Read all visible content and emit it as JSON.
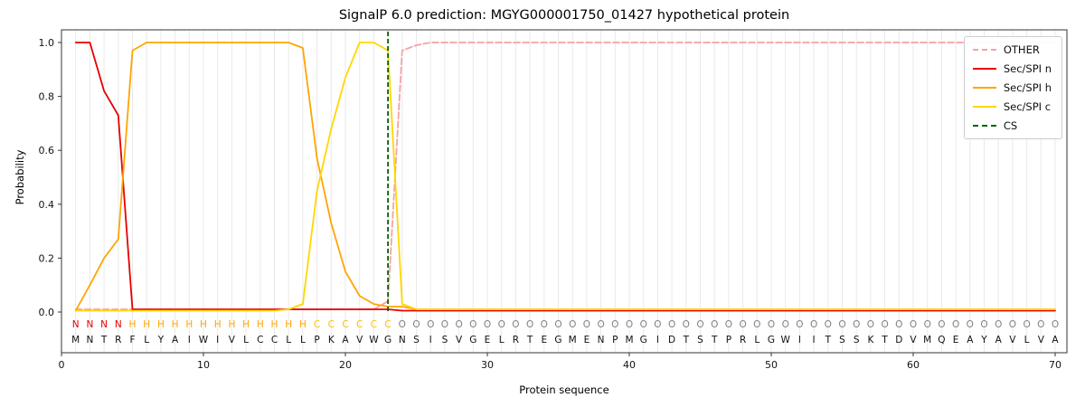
{
  "chart_data": {
    "type": "line",
    "title": "SignalP 6.0 prediction: MGYG000001750_01427 hypothetical protein",
    "xlabel": "Protein sequence",
    "ylabel": "Probability",
    "xlim": [
      0,
      71
    ],
    "ylim": [
      0,
      1.05
    ],
    "xticks": [
      0,
      10,
      20,
      30,
      40,
      50,
      60,
      70
    ],
    "yticks": [
      0.0,
      0.2,
      0.4,
      0.6,
      0.8,
      1.0
    ],
    "grid": "vertical gridline at every residue position",
    "legend_position": "upper right",
    "sequence": "MNTRFLYAIWIVLCCLLPKAVWGNSISVGELRTEGMENPMGIDTSTPRLGWIITSSKTDVMQEAYAVLVA",
    "regions": "NNNNHHHHHHHHHHHHHCCCCCCOOOOOOOOOOOOOOOOOOOOOOOOOOOOOOOOOOOOOOOOOOOOOOO",
    "region_colors": {
      "N": "#e60000",
      "H": "#ffa500",
      "C": "#f5c400",
      "O": "#808080"
    },
    "cs": {
      "label": "CS",
      "position": 23,
      "color": "#006400"
    },
    "series": [
      {
        "name": "OTHER",
        "color": "#f5a3a3",
        "dash": true,
        "values": [
          0.01,
          0.01,
          0.01,
          0.01,
          0.01,
          0.01,
          0.01,
          0.01,
          0.01,
          0.01,
          0.01,
          0.01,
          0.01,
          0.01,
          0.01,
          0.01,
          0.01,
          0.01,
          0.01,
          0.01,
          0.01,
          0.01,
          0.04,
          0.97,
          0.99,
          1.0,
          1.0,
          1.0,
          1.0,
          1.0,
          1.0,
          1.0,
          1.0,
          1.0,
          1.0,
          1.0,
          1.0,
          1.0,
          1.0,
          1.0,
          1.0,
          1.0,
          1.0,
          1.0,
          1.0,
          1.0,
          1.0,
          1.0,
          1.0,
          1.0,
          1.0,
          1.0,
          1.0,
          1.0,
          1.0,
          1.0,
          1.0,
          1.0,
          1.0,
          1.0,
          1.0,
          1.0,
          1.0,
          1.0,
          1.0,
          1.0,
          1.0,
          1.0,
          1.0,
          1.0
        ]
      },
      {
        "name": "Sec/SPI n",
        "color": "#e60000",
        "dash": false,
        "values": [
          1.0,
          1.0,
          0.82,
          0.73,
          0.01,
          0.01,
          0.01,
          0.01,
          0.01,
          0.01,
          0.01,
          0.01,
          0.01,
          0.01,
          0.01,
          0.01,
          0.01,
          0.01,
          0.01,
          0.01,
          0.01,
          0.01,
          0.01,
          0.005,
          0.005,
          0.005,
          0.005,
          0.005,
          0.005,
          0.005,
          0.005,
          0.005,
          0.005,
          0.005,
          0.005,
          0.005,
          0.005,
          0.005,
          0.005,
          0.005,
          0.005,
          0.005,
          0.005,
          0.005,
          0.005,
          0.005,
          0.005,
          0.005,
          0.005,
          0.005,
          0.005,
          0.005,
          0.005,
          0.005,
          0.005,
          0.005,
          0.005,
          0.005,
          0.005,
          0.005,
          0.005,
          0.005,
          0.005,
          0.005,
          0.005,
          0.005,
          0.005,
          0.005,
          0.005,
          0.005
        ]
      },
      {
        "name": "Sec/SPI h",
        "color": "#ffa500",
        "dash": false,
        "values": [
          0.005,
          0.1,
          0.2,
          0.27,
          0.97,
          1.0,
          1.0,
          1.0,
          1.0,
          1.0,
          1.0,
          1.0,
          1.0,
          1.0,
          1.0,
          1.0,
          0.98,
          0.57,
          0.33,
          0.15,
          0.06,
          0.03,
          0.02,
          0.02,
          0.01,
          0.01,
          0.01,
          0.01,
          0.01,
          0.01,
          0.01,
          0.01,
          0.01,
          0.01,
          0.01,
          0.01,
          0.01,
          0.01,
          0.01,
          0.01,
          0.01,
          0.01,
          0.01,
          0.01,
          0.01,
          0.01,
          0.01,
          0.01,
          0.01,
          0.01,
          0.01,
          0.01,
          0.01,
          0.01,
          0.01,
          0.01,
          0.01,
          0.01,
          0.01,
          0.01,
          0.01,
          0.01,
          0.01,
          0.01,
          0.01,
          0.01,
          0.01,
          0.01,
          0.01,
          0.01
        ]
      },
      {
        "name": "Sec/SPI c",
        "color": "#ffd700",
        "dash": false,
        "values": [
          0.005,
          0.005,
          0.005,
          0.005,
          0.005,
          0.005,
          0.005,
          0.005,
          0.005,
          0.005,
          0.005,
          0.005,
          0.005,
          0.005,
          0.005,
          0.01,
          0.03,
          0.45,
          0.68,
          0.87,
          1.0,
          1.0,
          0.97,
          0.03,
          0.01,
          0.01,
          0.01,
          0.01,
          0.01,
          0.01,
          0.01,
          0.01,
          0.01,
          0.01,
          0.01,
          0.01,
          0.01,
          0.01,
          0.01,
          0.01,
          0.01,
          0.01,
          0.01,
          0.01,
          0.01,
          0.01,
          0.01,
          0.01,
          0.01,
          0.01,
          0.01,
          0.01,
          0.01,
          0.01,
          0.01,
          0.01,
          0.01,
          0.01,
          0.01,
          0.01,
          0.01,
          0.01,
          0.01,
          0.01,
          0.01,
          0.01,
          0.01,
          0.01,
          0.01,
          0.01
        ]
      }
    ]
  }
}
